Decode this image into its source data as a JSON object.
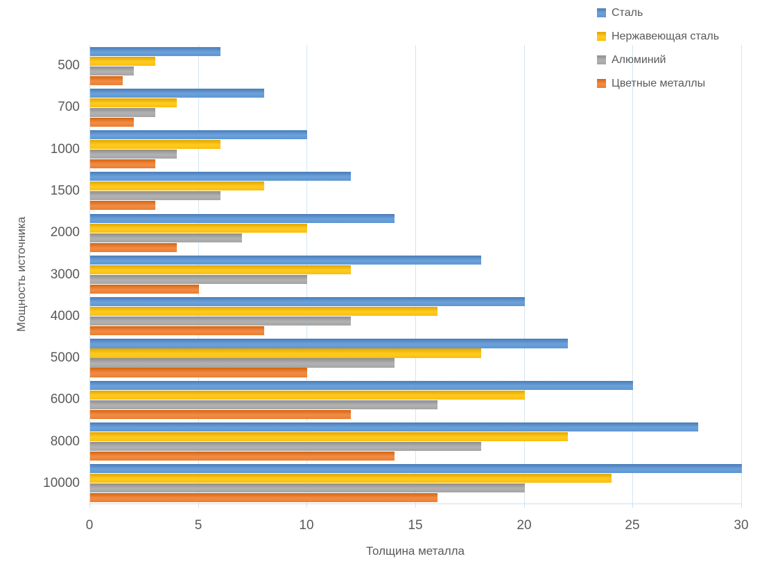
{
  "chart_data": {
    "type": "bar",
    "orientation": "horizontal",
    "title": "",
    "xlabel": "Толщина металла",
    "ylabel": "Мощность источника",
    "xlim": [
      0,
      30
    ],
    "xticks": [
      0,
      5,
      10,
      15,
      20,
      25,
      30
    ],
    "grid": true,
    "legend_position": "top-right",
    "categories": [
      "500",
      "700",
      "1000",
      "1500",
      "2000",
      "3000",
      "4000",
      "5000",
      "6000",
      "8000",
      "10000"
    ],
    "series": [
      {
        "name": "Сталь",
        "color": "#5E96D2",
        "color_top": "#4A7CB8",
        "color_light": "#6CA2DB",
        "values": [
          6,
          8,
          10,
          12,
          14,
          18,
          20,
          22,
          25,
          28,
          30
        ]
      },
      {
        "name": "Нержавеющая сталь",
        "color": "#FABF0B",
        "color_top": "#E2A600",
        "color_light": "#FFCB21",
        "values": [
          3,
          4,
          6,
          8,
          10,
          12,
          16,
          18,
          20,
          22,
          24
        ]
      },
      {
        "name": "Алюминий",
        "color": "#A5A5A5",
        "color_top": "#8E8E8E",
        "color_light": "#B2B2B2",
        "values": [
          2,
          3,
          4,
          6,
          7,
          10,
          12,
          14,
          16,
          18,
          20
        ]
      },
      {
        "name": "Цветные металлы",
        "color": "#EA7E31",
        "color_top": "#D5650E",
        "color_light": "#F28C46",
        "values": [
          1.5,
          2,
          3,
          3,
          4,
          5,
          8,
          10,
          12,
          14,
          16
        ]
      }
    ]
  },
  "colors": {
    "gridline": "#d3e5f0",
    "axis_line": "#cde1ee",
    "text": "#595959",
    "background": "#ffffff"
  }
}
